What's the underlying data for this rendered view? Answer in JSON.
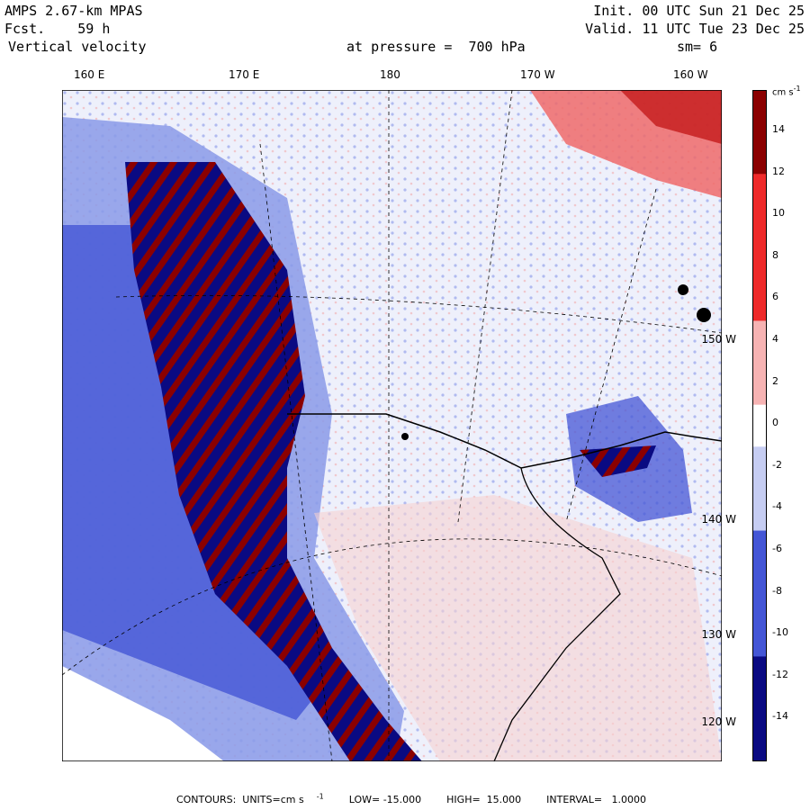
{
  "header": {
    "model": "AMPS 2.67-km MPAS",
    "fcst_label": "Fcst.",
    "fcst_value": "59 h",
    "field": "Vertical velocity",
    "init": "Init. 00 UTC Sun 21 Dec 25",
    "valid": "Valid. 11 UTC Tue 23 Dec 25",
    "level": "at pressure =  700 hPa",
    "smoothing": "sm= 6"
  },
  "map": {
    "longitude_labels": [
      "160 E",
      "170 E",
      "180",
      "170 W",
      "160 W"
    ],
    "latitude_labels": [
      "150 W",
      "140 W",
      "130 W",
      "120 W"
    ]
  },
  "colorbar": {
    "units": "cm s",
    "units_exp": "-1",
    "tick_labels": [
      "14",
      "12",
      "10",
      "8",
      "6",
      "4",
      "2",
      "0",
      "-2",
      "-4",
      "-6",
      "-8",
      "-10",
      "-12",
      "-14"
    ],
    "colors": {
      "strong_positive": "#8b0000",
      "positive": "#ee2a2a",
      "weak_positive": "#f6b3b3",
      "neutral": "#ffffff",
      "weak_negative": "#c6cdf2",
      "negative": "#4456d6",
      "strong_negative": "#0a0a82"
    }
  },
  "footer": {
    "contours": "CONTOURS:  UNITS=cm s",
    "units_exp": "-1",
    "low": "LOW= -15.000",
    "high": "HIGH=  15.000",
    "interval": "INTERVAL=   1.0000"
  }
}
